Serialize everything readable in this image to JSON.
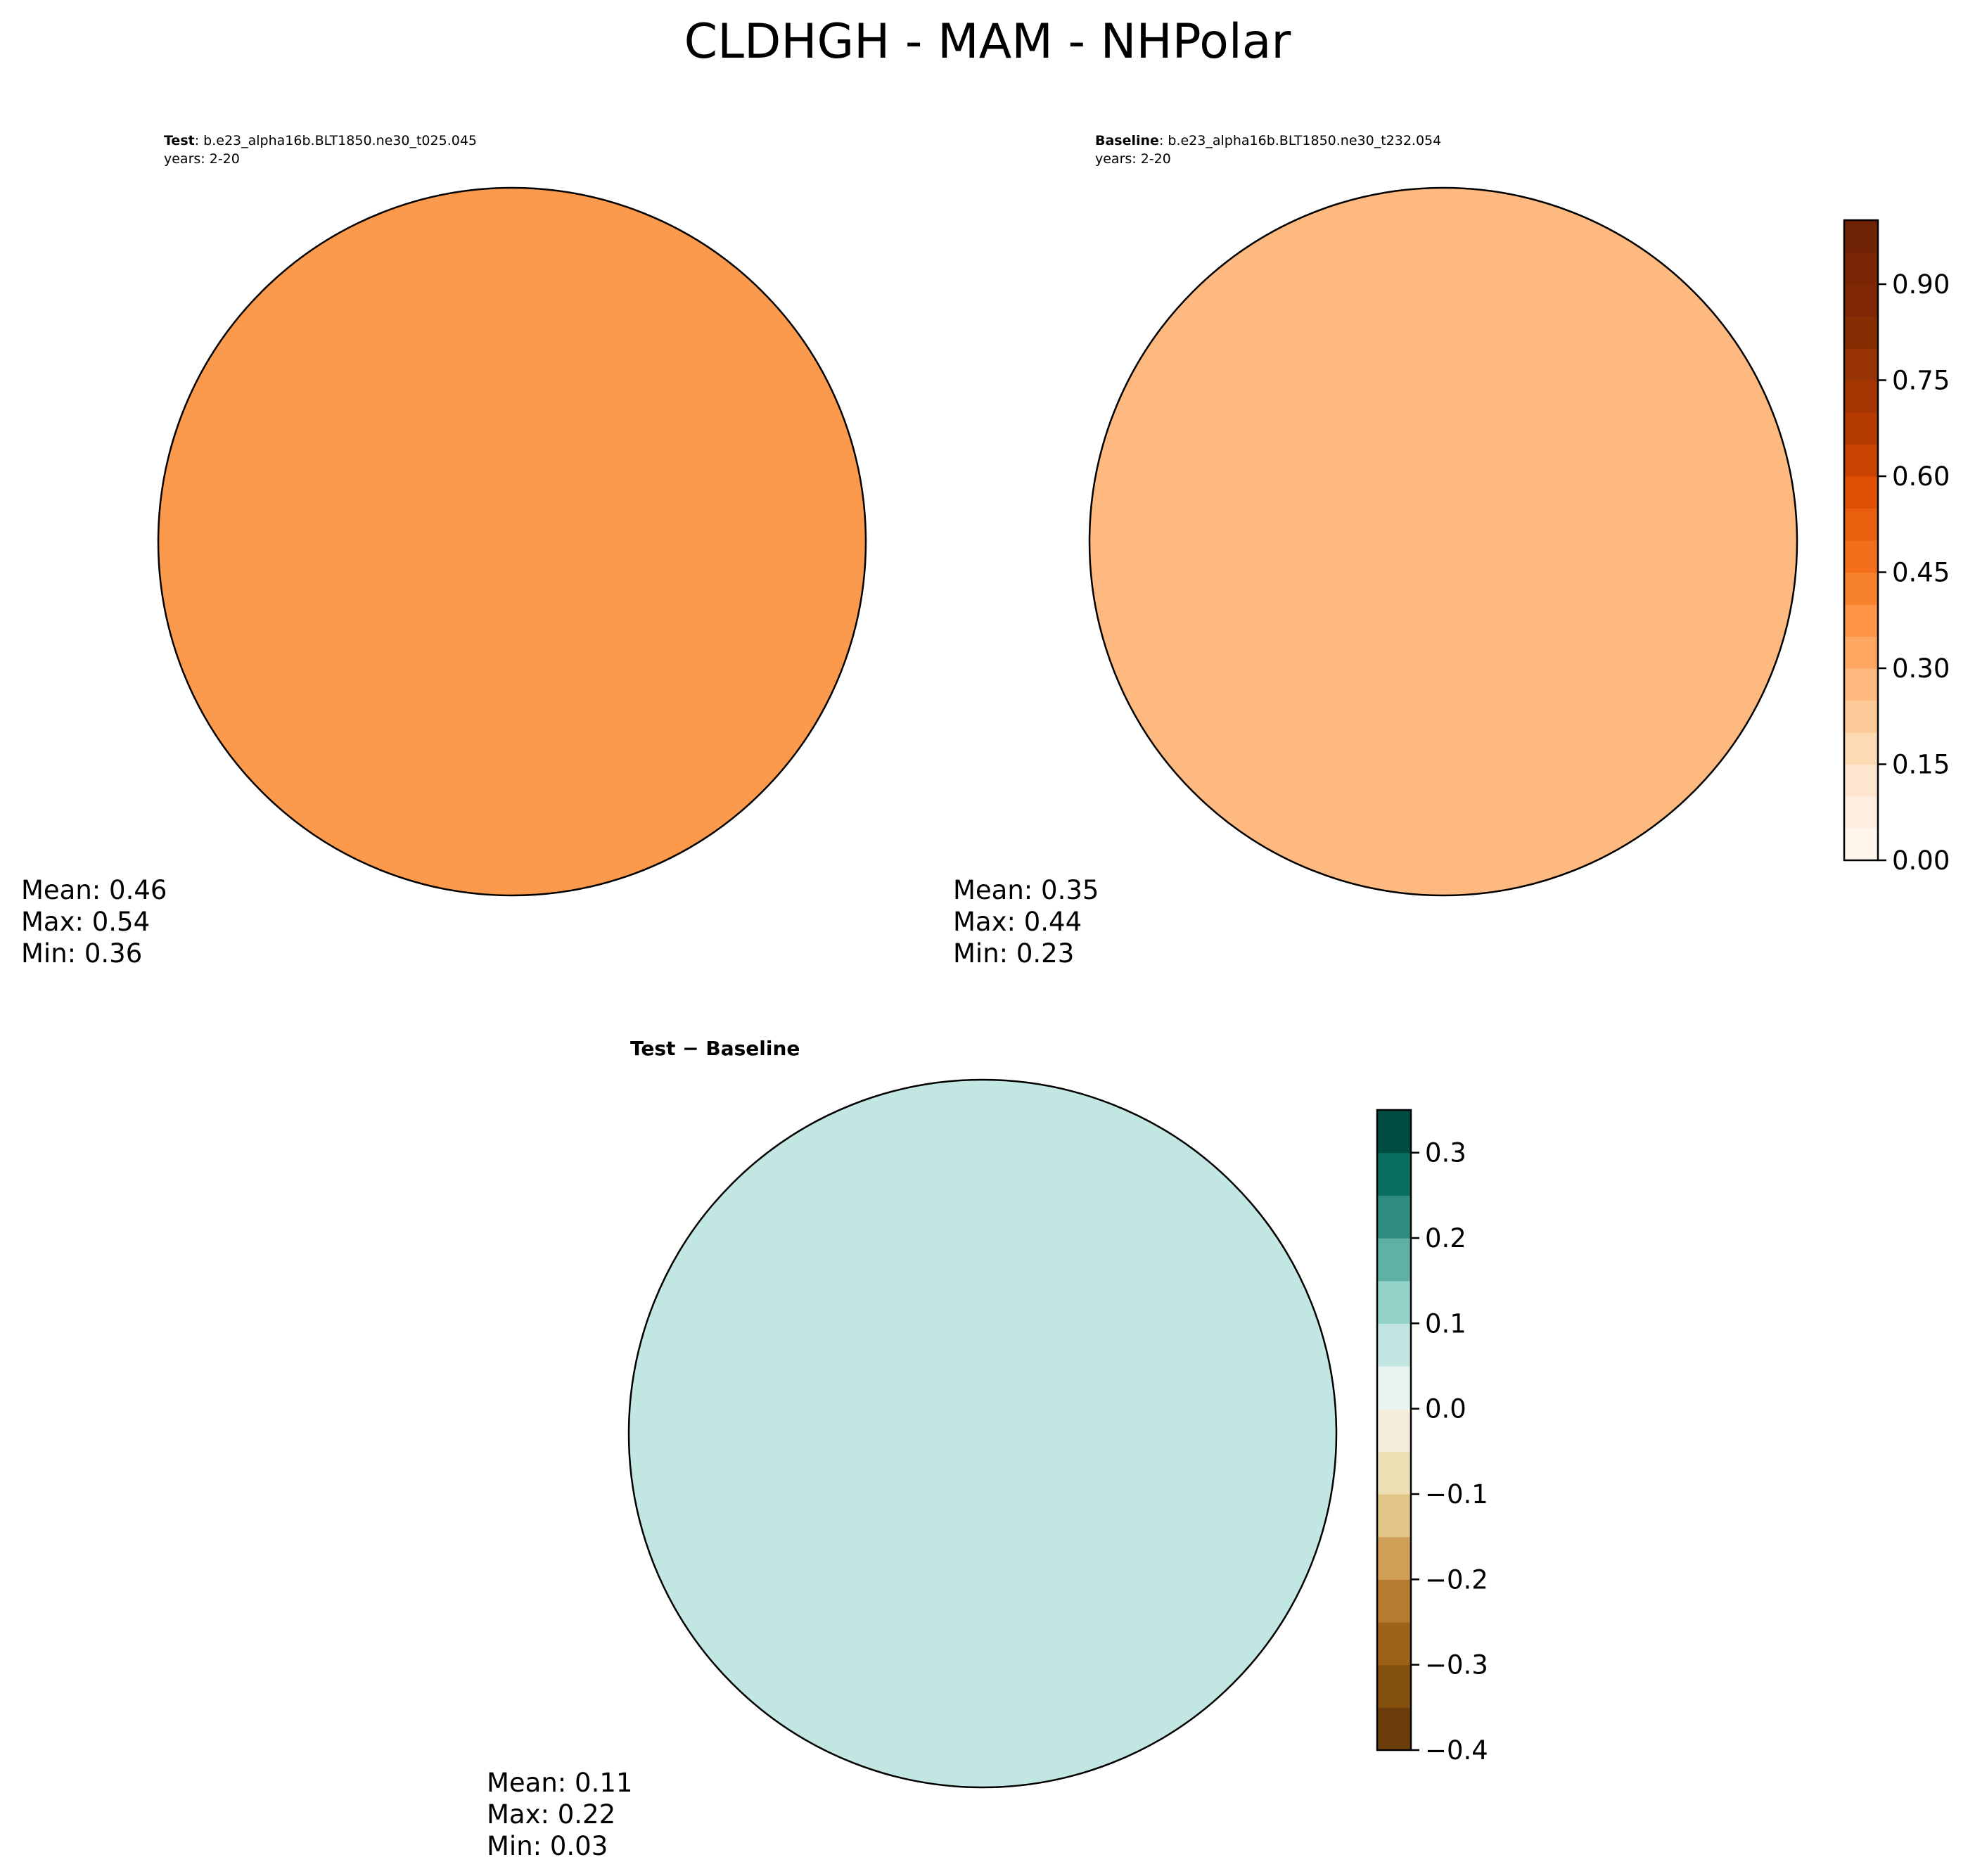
{
  "title": "CLDHGH - MAM - NHPolar",
  "panels": [
    {
      "id": "test",
      "label": "Test",
      "case": ": b.e23_alpha16b.BLT1850.ne30_t025.045",
      "years": "years: 2-20",
      "stats": {
        "mean": "Mean:  0.46",
        "max": "Max:  0.54",
        "min": "Min:  0.36"
      },
      "base_color": "#fb9a4c"
    },
    {
      "id": "baseline",
      "label": "Baseline",
      "case": ": b.e23_alpha16b.BLT1850.ne30_t232.054",
      "years": "years: 2-20",
      "stats": {
        "mean": "Mean:  0.35",
        "max": "Max:  0.44",
        "min": "Min:  0.23"
      },
      "base_color": "#fdb97f"
    },
    {
      "id": "difference",
      "label": "Test − Baseline",
      "stats": {
        "mean": "Mean:  0.11",
        "max": "Max:  0.22",
        "min": "Min:  0.03"
      },
      "base_color": "#c2e6e1"
    }
  ],
  "colorbars": {
    "field": {
      "range": [
        0,
        1
      ],
      "levels": 20,
      "ticks": [
        "0.00",
        "0.15",
        "0.30",
        "0.45",
        "0.60",
        "0.75",
        "0.90"
      ],
      "tick_values": [
        0,
        0.15,
        0.3,
        0.45,
        0.6,
        0.75,
        0.9
      ],
      "colors": [
        "#fff5eb",
        "#feede0",
        "#fee6ce",
        "#fdd9b4",
        "#fdcb9a",
        "#fdb97f",
        "#fda762",
        "#fd9446",
        "#f8812c",
        "#f36f1b",
        "#ea5f0e",
        "#df5005",
        "#cb4302",
        "#b53a02",
        "#a53603",
        "#963203",
        "#872d04",
        "#7f2704",
        "#7a2604",
        "#702304"
      ]
    },
    "difference": {
      "range": [
        -0.4,
        0.35
      ],
      "ticks": [
        "−0.4",
        "−0.3",
        "−0.2",
        "−0.1",
        "0.0",
        "0.1",
        "0.2",
        "0.3"
      ],
      "tick_values": [
        -0.4,
        -0.3,
        -0.2,
        -0.1,
        0.0,
        0.1,
        0.2,
        0.3
      ],
      "colors": [
        "#6a3d0a",
        "#84500d",
        "#9c6218",
        "#b57b2f",
        "#cf9f57",
        "#e1c586",
        "#eedfb2",
        "#f5eddb",
        "#e8f4f1",
        "#c2e6e1",
        "#93d2c6",
        "#5fb1a4",
        "#2e8c80",
        "#0b6e62",
        "#004e42"
      ]
    }
  }
}
